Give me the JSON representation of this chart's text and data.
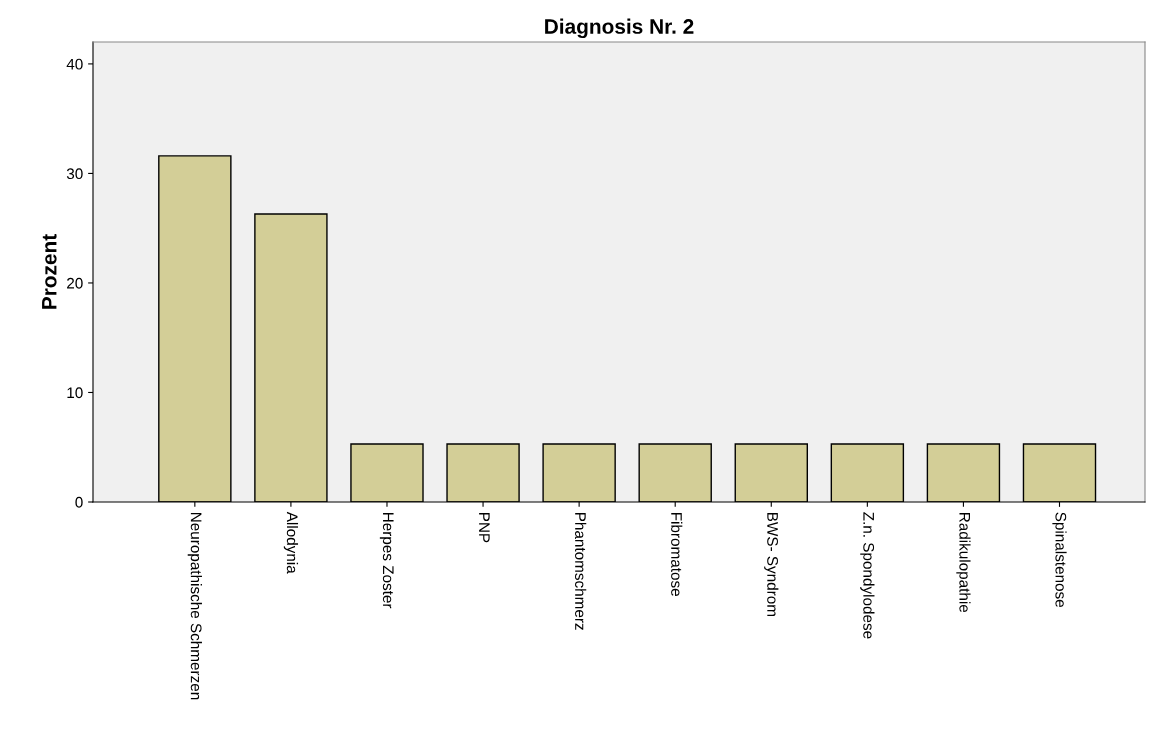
{
  "chart_data": {
    "type": "bar",
    "title": "Diagnosis Nr. 2",
    "ylabel": "Prozent",
    "categories": [
      "Neuropathische Schmerzen",
      "Allodynia",
      "Herpes Zoster",
      "PNP",
      "Phantomschmerz",
      "Fibromatose",
      "BWS- Syndrom",
      "Z.n. Spondylodese",
      "Radikulopathie",
      "Spinalstenose"
    ],
    "values": [
      31.6,
      26.3,
      5.3,
      5.3,
      5.3,
      5.3,
      5.3,
      5.3,
      5.3,
      5.3
    ],
    "color": "#d3ce97",
    "ylim": [
      0,
      42
    ],
    "yticks": [
      0,
      10,
      20,
      30,
      40
    ],
    "grid": false,
    "legend": false
  }
}
